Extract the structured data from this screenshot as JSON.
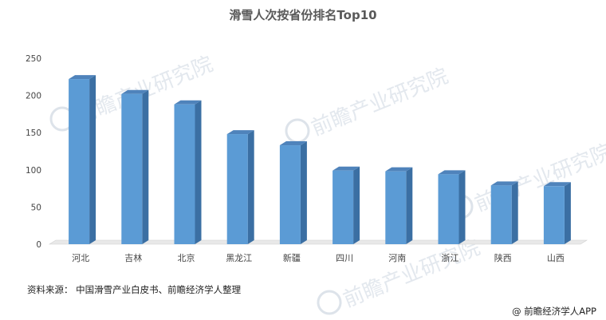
{
  "chart_data": {
    "type": "bar",
    "title": "滑雪人次按省份排名Top10",
    "categories": [
      "河北",
      "吉林",
      "北京",
      "黑龙江",
      "新疆",
      "四川",
      "河南",
      "浙江",
      "陕西",
      "山西"
    ],
    "values": [
      222,
      202,
      188,
      148,
      133,
      99,
      98,
      94,
      79,
      78
    ],
    "ylim": [
      0,
      250
    ],
    "yticks": [
      0,
      50,
      100,
      150,
      200,
      250
    ],
    "grid": false,
    "bar_color": "#5b9bd5"
  },
  "footer": {
    "source": "资料来源：  中国滑雪产业白皮书、前瞻经济学人整理",
    "credit": "@ 前瞻经济学人APP"
  },
  "watermark": {
    "text": "前瞻产业研究院"
  }
}
